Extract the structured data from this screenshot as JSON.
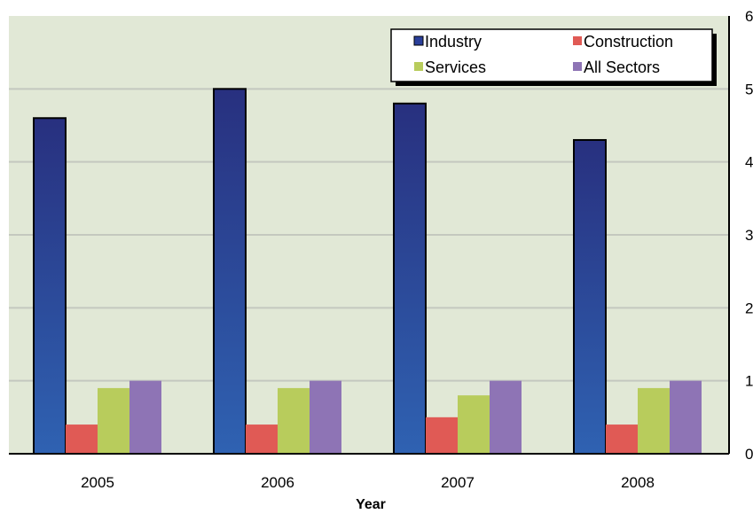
{
  "chart_data": {
    "type": "bar",
    "title": "",
    "xlabel": "Year",
    "ylabel": "",
    "categories": [
      "2005",
      "2006",
      "2007",
      "2008"
    ],
    "ylim": [
      0,
      6
    ],
    "yticks": [
      "0",
      "1",
      "2",
      "3",
      "4",
      "5",
      "6"
    ],
    "y_axis_side": "right",
    "grid": true,
    "legend_position": "top-right",
    "series": [
      {
        "name": "Industry",
        "color": "#2a3f9a",
        "values": [
          4.6,
          5.0,
          4.8,
          4.3
        ]
      },
      {
        "name": "Construction",
        "color": "#e05a55",
        "values": [
          0.4,
          0.4,
          0.5,
          0.4
        ]
      },
      {
        "name": "Services",
        "color": "#b8cc5c",
        "values": [
          0.9,
          0.9,
          0.8,
          0.9
        ]
      },
      {
        "name": "All Sectors",
        "color": "#8e74b5",
        "values": [
          1.0,
          1.0,
          1.0,
          1.0
        ]
      }
    ],
    "plot_background": "#e1e8d6"
  }
}
